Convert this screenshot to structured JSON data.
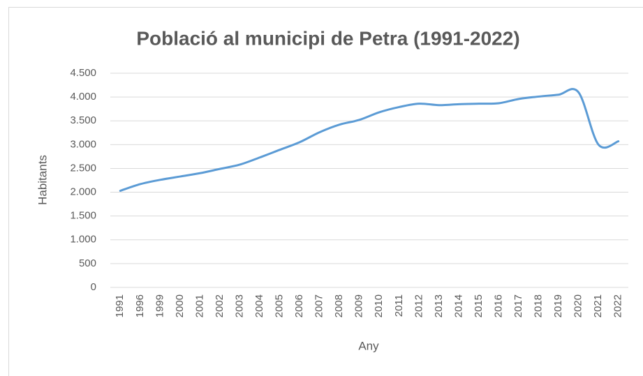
{
  "chart_data": {
    "type": "line",
    "title": "Població al municipi de Petra (1991-2022)",
    "x_label": "Any",
    "y_label": "Habitants",
    "categories": [
      "1991",
      "1996",
      "1999",
      "2000",
      "2001",
      "2002",
      "2003",
      "2004",
      "2005",
      "2006",
      "2007",
      "2008",
      "2009",
      "2010",
      "2011",
      "2012",
      "2013",
      "2014",
      "2015",
      "2016",
      "2017",
      "2018",
      "2019",
      "2020",
      "2021",
      "2022"
    ],
    "series": [
      {
        "name": "Habitants",
        "color": "#5b9bd5",
        "values": [
          2030,
          2170,
          2260,
          2330,
          2400,
          2490,
          2580,
          2730,
          2890,
          3050,
          3260,
          3420,
          3520,
          3680,
          3790,
          3860,
          3830,
          3850,
          3860,
          3870,
          3960,
          4010,
          4050,
          4100,
          3000,
          3070
        ]
      }
    ],
    "ylim": [
      0,
      4500
    ],
    "yticks": [
      0,
      500,
      {
        "value": 1000,
        "label": "1.000"
      },
      {
        "value": 1500,
        "label": "1.500"
      },
      {
        "value": 2000,
        "label": "2.000"
      },
      {
        "value": 2500,
        "label": "2.500"
      },
      {
        "value": 3000,
        "label": "3.000"
      },
      {
        "value": 3500,
        "label": "3.500"
      },
      {
        "value": 4000,
        "label": "4.000"
      },
      {
        "value": 4500,
        "label": "4.500"
      }
    ],
    "grid": true
  }
}
